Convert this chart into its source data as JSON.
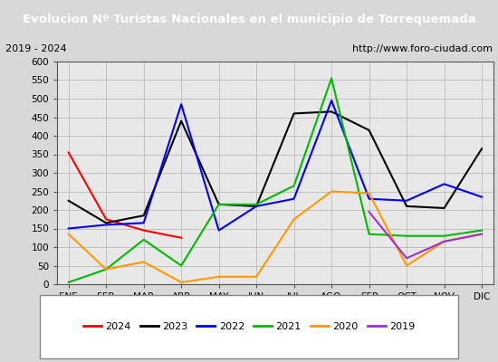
{
  "title": "Evolucion Nº Turistas Nacionales en el municipio de Torrequemada",
  "subtitle_left": "2019 - 2024",
  "subtitle_right": "http://www.foro-ciudad.com",
  "title_bg_color": "#4d7ebf",
  "title_text_color": "#ffffff",
  "months": [
    "ENE",
    "FEB",
    "MAR",
    "ABR",
    "MAY",
    "JUN",
    "JUL",
    "AGO",
    "SEP",
    "OCT",
    "NOV",
    "DIC"
  ],
  "ylim": [
    0,
    600
  ],
  "yticks": [
    0,
    50,
    100,
    150,
    200,
    250,
    300,
    350,
    400,
    450,
    500,
    550,
    600
  ],
  "series": {
    "2024": {
      "color": "#ff0000",
      "data": [
        355,
        175,
        145,
        125,
        null,
        null,
        null,
        null,
        null,
        null,
        null,
        null
      ]
    },
    "2023": {
      "color": "#000000",
      "data": [
        225,
        165,
        185,
        440,
        215,
        210,
        460,
        465,
        415,
        210,
        205,
        365
      ]
    },
    "2022": {
      "color": "#0000ff",
      "data": [
        150,
        160,
        165,
        485,
        145,
        210,
        230,
        495,
        230,
        225,
        270,
        235
      ]
    },
    "2021": {
      "color": "#00bb00",
      "data": [
        5,
        40,
        120,
        50,
        215,
        215,
        265,
        555,
        135,
        130,
        130,
        145
      ]
    },
    "2020": {
      "color": "#ff9900",
      "data": [
        135,
        40,
        60,
        5,
        20,
        20,
        175,
        250,
        245,
        50,
        115,
        135
      ]
    },
    "2019": {
      "color": "#9933cc",
      "data": [
        null,
        null,
        null,
        null,
        null,
        null,
        null,
        null,
        195,
        70,
        115,
        135
      ]
    }
  },
  "legend_order": [
    "2024",
    "2023",
    "2022",
    "2021",
    "2020",
    "2019"
  ],
  "bg_color": "#d8d8d8",
  "plot_bg_color": "#e8e8e8",
  "subtitle_bg": "#f0f0f0",
  "grid_color": "#bbbbbb",
  "border_color": "#555555"
}
